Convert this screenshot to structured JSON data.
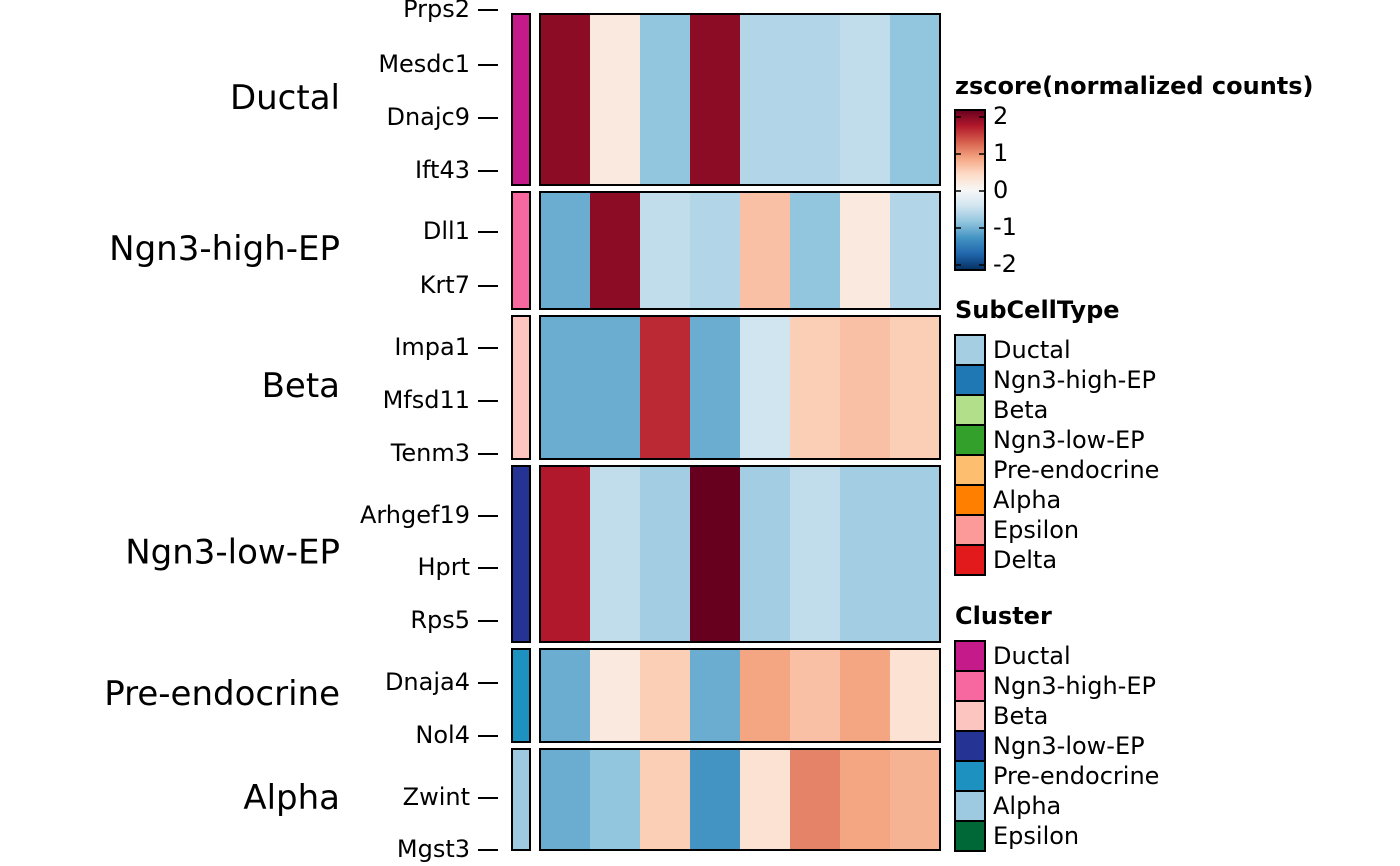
{
  "chart_data": {
    "type": "heatmap",
    "zlim": [
      -2,
      2
    ],
    "zticks": [
      2,
      1,
      0,
      -1,
      -2
    ],
    "colorscale": [
      "#053061",
      "#2166ac",
      "#4393c3",
      "#92c5de",
      "#d1e5f0",
      "#f7f7f7",
      "#fddbc7",
      "#f4a582",
      "#d6604d",
      "#b2182b",
      "#67001f"
    ],
    "colorbar_title": "zscore(normalized counts)",
    "groups": [
      {
        "name": "Ductal",
        "color": "#c51b8a",
        "genes": [
          "Prps2",
          "Mesdc1",
          "Dnajc9",
          "Ift43"
        ],
        "values": [
          1.8,
          0.2,
          -0.8,
          1.8,
          -0.6,
          -0.6,
          -0.5,
          -0.8
        ]
      },
      {
        "name": "Ngn3-high-EP",
        "color": "#f768a1",
        "genes": [
          "Dll1",
          "Krt7"
        ],
        "values": [
          -1.0,
          1.8,
          -0.5,
          -0.6,
          0.6,
          -0.8,
          0.2,
          -0.6
        ]
      },
      {
        "name": "Beta",
        "color": "#fcc5c0",
        "genes": [
          "Impa1",
          "Mfsd11",
          "Tenm3"
        ],
        "values": [
          -1.0,
          -1.0,
          1.5,
          -1.0,
          -0.4,
          0.5,
          0.6,
          0.5
        ]
      },
      {
        "name": "Ngn3-low-EP",
        "color": "#253494",
        "genes": [
          "Arhgef19",
          "Hprt",
          "Rps5"
        ],
        "values": [
          1.6,
          -0.5,
          -0.7,
          2.0,
          -0.7,
          -0.5,
          -0.7,
          -0.7
        ]
      },
      {
        "name": "Pre-endocrine",
        "color": "#1d91c0",
        "genes": [
          "Dnaja4",
          "Nol4"
        ],
        "values": [
          -1.0,
          0.2,
          0.5,
          -1.0,
          0.8,
          0.6,
          0.8,
          0.3
        ]
      },
      {
        "name": "Alpha",
        "color": "#9ecae1",
        "genes": [
          "Zwint",
          "Mgst3"
        ],
        "values": [
          -1.0,
          -0.8,
          0.5,
          -1.2,
          0.3,
          1.0,
          0.8,
          0.7
        ]
      }
    ],
    "legends": [
      {
        "title": "SubCellType",
        "items": [
          {
            "name": "Ductal",
            "color": "#a6cee3"
          },
          {
            "name": "Ngn3-high-EP",
            "color": "#1f78b4"
          },
          {
            "name": "Beta",
            "color": "#b2df8a"
          },
          {
            "name": "Ngn3-low-EP",
            "color": "#33a02c"
          },
          {
            "name": "Pre-endocrine",
            "color": "#fdbf6f"
          },
          {
            "name": "Alpha",
            "color": "#ff7f00"
          },
          {
            "name": "Epsilon",
            "color": "#fb9a99"
          },
          {
            "name": "Delta",
            "color": "#e31a1c"
          }
        ]
      },
      {
        "title": "Cluster",
        "items": [
          {
            "name": "Ductal",
            "color": "#c51b8a"
          },
          {
            "name": "Ngn3-high-EP",
            "color": "#f768a1"
          },
          {
            "name": "Beta",
            "color": "#fcc5c0"
          },
          {
            "name": "Ngn3-low-EP",
            "color": "#253494"
          },
          {
            "name": "Pre-endocrine",
            "color": "#1d91c0"
          },
          {
            "name": "Alpha",
            "color": "#9ecae1"
          },
          {
            "name": "Epsilon",
            "color": "#006837"
          }
        ]
      }
    ]
  }
}
